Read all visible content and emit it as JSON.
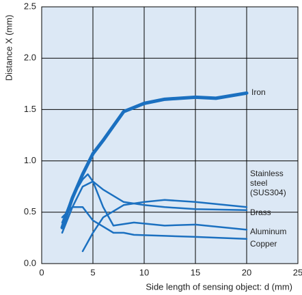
{
  "chart_data": {
    "type": "line",
    "xlabel": "Side length of sensing object: d (mm)",
    "ylabel": "Distance X (mm)",
    "xlim": [
      0,
      25
    ],
    "xticks": [
      0,
      5,
      10,
      15,
      20,
      25
    ],
    "ylim": [
      0,
      2.5
    ],
    "yticks": [
      {
        "value": 0,
        "label": "0.0"
      },
      0.5,
      {
        "value": 1,
        "label": "1.0"
      },
      1.5,
      {
        "value": 2,
        "label": "2.0"
      },
      2.5
    ],
    "grid": true,
    "background": "#dce8f5",
    "series": [
      {
        "name": "Iron",
        "color": "#1b70c0",
        "line_width": 5,
        "x": [
          2,
          3,
          4,
          5,
          6,
          7,
          8,
          9,
          10,
          12,
          15,
          17,
          20
        ],
        "values": [
          0.35,
          0.64,
          0.87,
          1.07,
          1.2,
          1.34,
          1.48,
          1.52,
          1.56,
          1.6,
          1.62,
          1.61,
          1.66
        ]
      },
      {
        "name": "Stainless steel (SUS304)",
        "color": "#1b70c0",
        "line_width": 2.5,
        "x": [
          4,
          5,
          6,
          8,
          10,
          12,
          15,
          20
        ],
        "values": [
          0.12,
          0.3,
          0.45,
          0.57,
          0.6,
          0.62,
          0.6,
          0.55
        ]
      },
      {
        "name": "Brass",
        "color": "#1b70c0",
        "line_width": 2.5,
        "x": [
          2,
          3,
          4,
          5,
          6,
          8,
          10,
          12,
          15,
          20
        ],
        "values": [
          0.3,
          0.55,
          0.75,
          0.8,
          0.72,
          0.6,
          0.57,
          0.55,
          0.53,
          0.52
        ]
      },
      {
        "name": "Aluminum",
        "color": "#1b70c0",
        "line_width": 2.5,
        "x": [
          2,
          3,
          4,
          4.5,
          5,
          6,
          7,
          9,
          12,
          15,
          20
        ],
        "values": [
          0.4,
          0.65,
          0.82,
          0.87,
          0.8,
          0.55,
          0.37,
          0.4,
          0.37,
          0.38,
          0.33
        ]
      },
      {
        "name": "Copper",
        "color": "#1b70c0",
        "line_width": 2.5,
        "x": [
          2,
          3,
          4,
          5,
          6,
          7,
          8,
          9,
          12,
          15,
          20
        ],
        "values": [
          0.45,
          0.55,
          0.55,
          0.42,
          0.36,
          0.3,
          0.3,
          0.28,
          0.27,
          0.26,
          0.24
        ]
      }
    ]
  }
}
